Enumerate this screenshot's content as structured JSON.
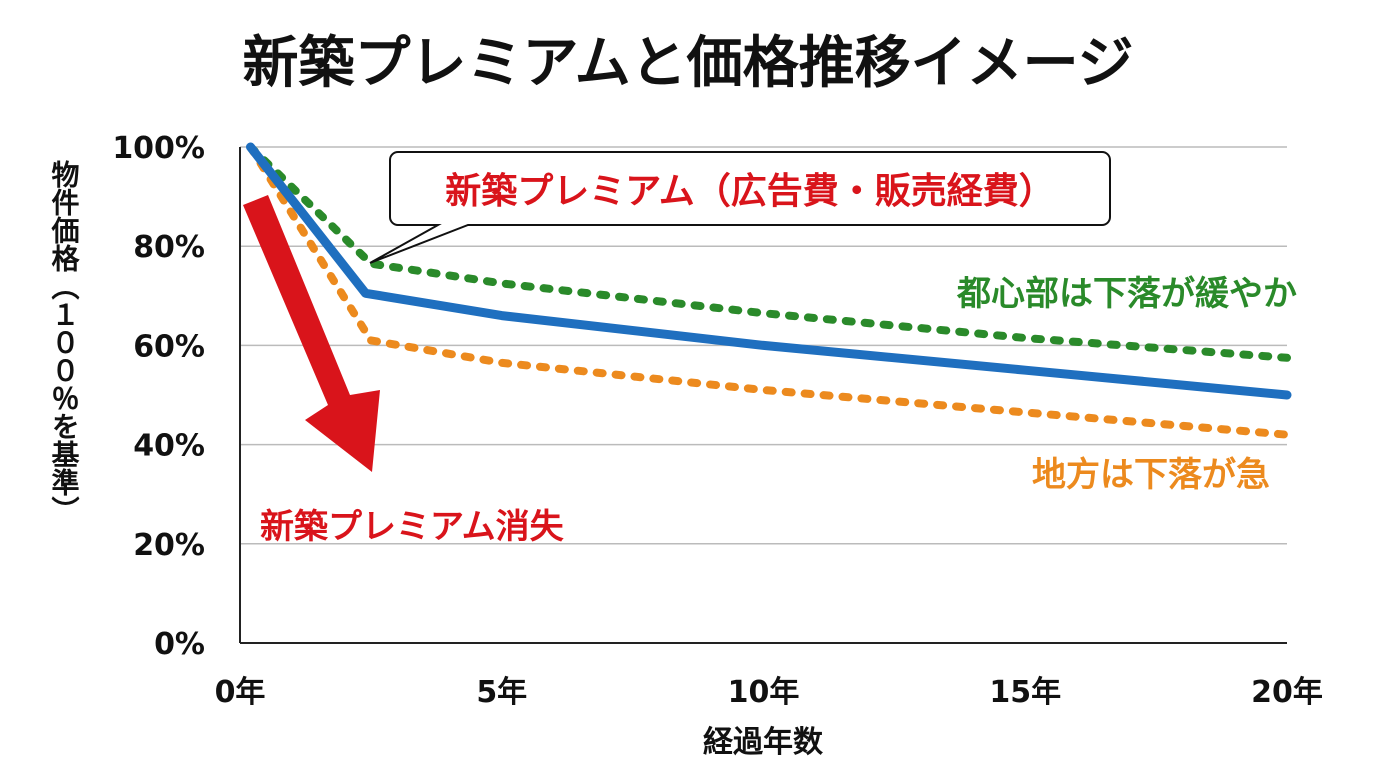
{
  "chart_data": {
    "type": "line",
    "title": "新築プレミアムと価格推移イメージ",
    "xlabel": "経過年数",
    "ylabel": "物件価格（１００％を基準）",
    "xlim": [
      0,
      20
    ],
    "ylim": [
      0,
      100
    ],
    "x_ticks": [
      0,
      5,
      10,
      15,
      20
    ],
    "x_tick_labels": [
      "0年",
      "5年",
      "10年",
      "15年",
      "20年"
    ],
    "y_ticks": [
      0,
      20,
      40,
      60,
      80,
      100
    ],
    "y_tick_labels": [
      "0%",
      "20%",
      "40%",
      "60%",
      "80%",
      "100%"
    ],
    "grid": "horizontal",
    "series": [
      {
        "style": "solid",
        "color": "#1f6fbf",
        "points": [
          [
            0.2,
            100
          ],
          [
            2.4,
            70.5
          ],
          [
            5,
            66
          ],
          [
            10,
            60
          ],
          [
            15,
            55
          ],
          [
            20,
            50
          ]
        ]
      },
      {
        "style": "dotted",
        "color": "#2a8a2a",
        "label": "都心部は下落が緩やか",
        "points": [
          [
            0.2,
            100
          ],
          [
            2.5,
            76.5
          ],
          [
            5,
            72.5
          ],
          [
            10,
            66.5
          ],
          [
            15,
            61.5
          ],
          [
            20,
            57.5
          ]
        ]
      },
      {
        "style": "dotted",
        "color": "#ec8a1e",
        "label": "地方は下落が急",
        "points": [
          [
            0.2,
            100
          ],
          [
            2.5,
            61
          ],
          [
            5,
            56.5
          ],
          [
            10,
            51
          ],
          [
            15,
            46.5
          ],
          [
            20,
            42
          ]
        ]
      }
    ],
    "annotations": {
      "callout": "新築プレミアム（広告費・販売経費）",
      "arrow_label": "新築プレミアム消失",
      "arrow_color": "#d9141b"
    }
  }
}
